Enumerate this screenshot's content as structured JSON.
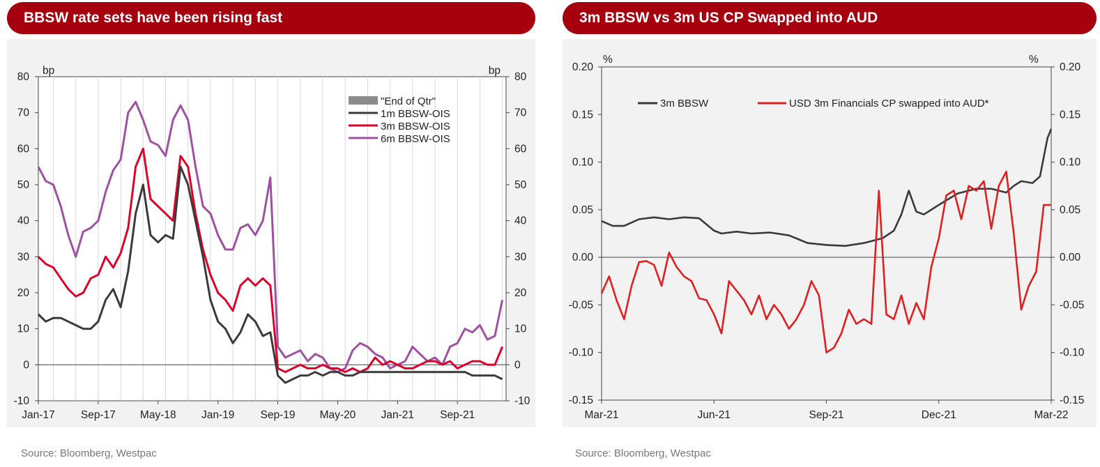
{
  "left": {
    "title": "BBSW rate sets have been rising fast",
    "source": "Source: Bloomberg, Westpac"
  },
  "right": {
    "title": "3m BBSW vs 3m US CP Swapped into AUD",
    "source": "Source: Bloomberg, Westpac"
  },
  "colors": {
    "dark": "#3a3a3a",
    "red": "#e0002a",
    "purple": "#a050a0",
    "redCP": "#e02020",
    "gray": "#8c8c8c",
    "title": "#a6000f"
  },
  "chart_data": [
    {
      "type": "line",
      "title": "BBSW rate sets have been rising fast",
      "ylabel_left": "bp",
      "ylabel_right": "bp",
      "ylim": [
        -10,
        80
      ],
      "yticks": [
        "80",
        "70",
        "60",
        "50",
        "40",
        "30",
        "20",
        "10",
        "0",
        "-10"
      ],
      "xticks": [
        "Jan-17",
        "Sep-17",
        "May-18",
        "Jan-19",
        "Sep-19",
        "May-20",
        "Jan-21",
        "Sep-21"
      ],
      "x_unit": "months since Jan-17",
      "xlim": [
        0,
        62.5
      ],
      "legend": [
        "\"End of Qtr\"",
        "1m BBSW-OIS",
        "3m BBSW-OIS",
        "6m BBSW-OIS"
      ],
      "series": [
        {
          "name": "1m BBSW-OIS",
          "x": [
            0,
            1,
            2,
            3,
            4,
            5,
            6,
            7,
            8,
            9,
            10,
            11,
            12,
            13,
            14,
            15,
            16,
            17,
            18,
            19,
            20,
            21,
            22,
            23,
            24,
            25,
            26,
            27,
            28,
            29,
            30,
            31,
            32,
            33,
            34,
            35,
            36,
            37,
            38,
            39,
            40,
            41,
            42,
            43,
            44,
            45,
            46,
            47,
            48,
            49,
            50,
            51,
            52,
            53,
            54,
            55,
            56,
            57,
            58,
            59,
            60,
            61,
            62
          ],
          "values": [
            14,
            12,
            13,
            13,
            12,
            11,
            10,
            10,
            12,
            18,
            21,
            16,
            26,
            42,
            50,
            36,
            34,
            36,
            35,
            55,
            50,
            40,
            30,
            18,
            12,
            10,
            6,
            9,
            14,
            12,
            8,
            9,
            -3,
            -5,
            -4,
            -3,
            -3,
            -2,
            -3,
            -2,
            -2,
            -3,
            -3,
            -2,
            -2,
            -2,
            -2,
            -2,
            -2,
            -2,
            -2,
            -2,
            -2,
            -2,
            -2,
            -2,
            -2,
            -2,
            -3,
            -3,
            -3,
            -3,
            -4
          ]
        },
        {
          "name": "3m BBSW-OIS",
          "x": [
            0,
            1,
            2,
            3,
            4,
            5,
            6,
            7,
            8,
            9,
            10,
            11,
            12,
            13,
            14,
            15,
            16,
            17,
            18,
            19,
            20,
            21,
            22,
            23,
            24,
            25,
            26,
            27,
            28,
            29,
            30,
            31,
            32,
            33,
            34,
            35,
            36,
            37,
            38,
            39,
            40,
            41,
            42,
            43,
            44,
            45,
            46,
            47,
            48,
            49,
            50,
            51,
            52,
            53,
            54,
            55,
            56,
            57,
            58,
            59,
            60,
            61,
            62
          ],
          "values": [
            30,
            28,
            27,
            24,
            21,
            19,
            20,
            24,
            25,
            30,
            27,
            31,
            38,
            55,
            60,
            46,
            44,
            42,
            40,
            58,
            55,
            42,
            32,
            25,
            20,
            18,
            15,
            22,
            24,
            22,
            24,
            22,
            -1,
            -2,
            -1,
            0,
            -1,
            -1,
            0,
            -1,
            -1,
            -2,
            -1,
            -2,
            -1,
            2,
            0,
            1,
            0,
            -1,
            -1,
            0,
            1,
            1,
            0,
            1,
            -1,
            0,
            1,
            1,
            0,
            0,
            5
          ]
        },
        {
          "name": "6m BBSW-OIS",
          "x": [
            0,
            1,
            2,
            3,
            4,
            5,
            6,
            7,
            8,
            9,
            10,
            11,
            12,
            13,
            14,
            15,
            16,
            17,
            18,
            19,
            20,
            21,
            22,
            23,
            24,
            25,
            26,
            27,
            28,
            29,
            30,
            31,
            32,
            33,
            34,
            35,
            36,
            37,
            38,
            39,
            40,
            41,
            42,
            43,
            44,
            45,
            46,
            47,
            48,
            49,
            50,
            51,
            52,
            53,
            54,
            55,
            56,
            57,
            58,
            59,
            60,
            61,
            62
          ],
          "values": [
            55,
            51,
            50,
            44,
            36,
            30,
            37,
            38,
            40,
            48,
            54,
            57,
            70,
            73,
            68,
            62,
            61,
            58,
            68,
            72,
            68,
            55,
            44,
            42,
            36,
            32,
            32,
            38,
            39,
            36,
            40,
            52,
            5,
            2,
            3,
            4,
            1,
            3,
            2,
            -1,
            -2,
            -1,
            4,
            6,
            5,
            3,
            2,
            -1,
            0,
            1,
            5,
            3,
            1,
            2,
            0,
            5,
            6,
            10,
            9,
            11,
            7,
            8,
            18
          ]
        }
      ],
      "end_of_qtr_x": [
        2,
        5,
        8,
        11,
        14,
        17,
        20,
        23,
        26,
        29,
        32,
        35,
        38,
        41,
        44,
        47,
        50,
        53,
        56,
        59,
        62
      ]
    },
    {
      "type": "line",
      "title": "3m BBSW vs 3m US CP Swapped into AUD",
      "ylabel_left": "%",
      "ylabel_right": "%",
      "ylim": [
        -0.15,
        0.2
      ],
      "yticks": [
        "0.20",
        "0.15",
        "0.10",
        "0.05",
        "0.00",
        "-0.05",
        "-0.10",
        "-0.15"
      ],
      "xticks": [
        "Mar-21",
        "Jun-21",
        "Sep-21",
        "Dec-21",
        "Mar-22"
      ],
      "x_unit": "months since Mar-21",
      "xlim": [
        0,
        12
      ],
      "legend": [
        "3m BBSW",
        "USD 3m Financials CP swapped into AUD*"
      ],
      "series": [
        {
          "name": "3m BBSW",
          "x": [
            0,
            0.3,
            0.6,
            1.0,
            1.4,
            1.8,
            2.2,
            2.6,
            3.0,
            3.2,
            3.6,
            4.0,
            4.5,
            5.0,
            5.5,
            6.0,
            6.5,
            7.0,
            7.5,
            7.8,
            8.0,
            8.2,
            8.4,
            8.6,
            9.0,
            9.5,
            10.0,
            10.4,
            10.8,
            11.0,
            11.2,
            11.5,
            11.7,
            11.9,
            12.0
          ],
          "values": [
            0.038,
            0.033,
            0.033,
            0.04,
            0.042,
            0.04,
            0.042,
            0.041,
            0.028,
            0.025,
            0.027,
            0.025,
            0.026,
            0.023,
            0.015,
            0.013,
            0.012,
            0.015,
            0.02,
            0.028,
            0.045,
            0.07,
            0.048,
            0.045,
            0.055,
            0.067,
            0.072,
            0.072,
            0.068,
            0.075,
            0.08,
            0.078,
            0.085,
            0.125,
            0.135
          ]
        },
        {
          "name": "USD 3m Financials CP swapped into AUD*",
          "x": [
            0,
            0.2,
            0.4,
            0.6,
            0.8,
            1.0,
            1.2,
            1.4,
            1.6,
            1.8,
            2.0,
            2.2,
            2.4,
            2.6,
            2.8,
            3.0,
            3.2,
            3.4,
            3.6,
            3.8,
            4.0,
            4.2,
            4.4,
            4.6,
            4.8,
            5.0,
            5.2,
            5.4,
            5.6,
            5.8,
            6.0,
            6.2,
            6.4,
            6.6,
            6.8,
            7.0,
            7.2,
            7.4,
            7.6,
            7.8,
            8.0,
            8.2,
            8.4,
            8.6,
            8.8,
            9.0,
            9.2,
            9.4,
            9.6,
            9.8,
            10.0,
            10.2,
            10.4,
            10.6,
            10.8,
            11.0,
            11.2,
            11.4,
            11.6,
            11.8,
            12.0
          ],
          "values": [
            -0.038,
            -0.02,
            -0.045,
            -0.065,
            -0.03,
            -0.005,
            -0.004,
            -0.008,
            -0.03,
            0.005,
            -0.01,
            -0.02,
            -0.025,
            -0.043,
            -0.045,
            -0.06,
            -0.08,
            -0.025,
            -0.035,
            -0.045,
            -0.06,
            -0.04,
            -0.065,
            -0.05,
            -0.06,
            -0.075,
            -0.065,
            -0.05,
            -0.025,
            -0.04,
            -0.1,
            -0.095,
            -0.08,
            -0.055,
            -0.07,
            -0.065,
            -0.07,
            0.07,
            -0.06,
            -0.065,
            -0.04,
            -0.07,
            -0.048,
            -0.065,
            -0.01,
            0.02,
            0.065,
            0.07,
            0.04,
            0.075,
            0.07,
            0.08,
            0.03,
            0.075,
            0.09,
            0.025,
            -0.055,
            -0.03,
            -0.015,
            0.055,
            0.055
          ]
        }
      ]
    }
  ]
}
